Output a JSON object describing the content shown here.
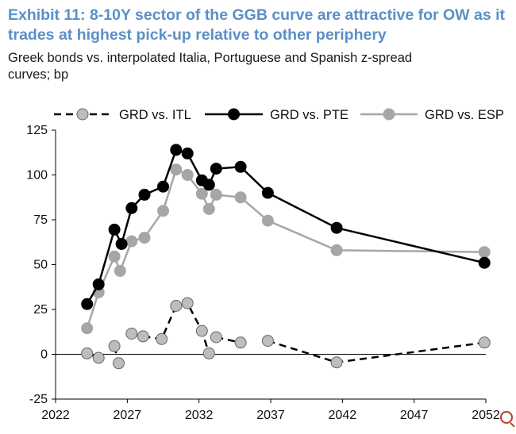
{
  "title_line1": "Exhibit 11: 8-10Y sector of the GGB curve are attractive for OW as it",
  "title_line2": "trades at highest pick-up relative to other periphery",
  "subtitle_line1": "Greek bonds vs. interpolated Italia, Portuguese and Spanish z-spread",
  "subtitle_line2": "curves; bp",
  "chart_data": {
    "type": "line",
    "title": "8-10Y sector of the GGB curve are attractive for OW as it trades at highest pick-up relative to other periphery",
    "xlabel": "",
    "ylabel": "bp",
    "xlim": [
      2022,
      2052
    ],
    "ylim": [
      -25,
      125
    ],
    "xticks": [
      2022,
      2027,
      2032,
      2037,
      2042,
      2047,
      2052
    ],
    "xtick_labels": [
      "2022",
      "2027",
      "2032",
      "2037",
      "2042",
      "2047",
      "2052"
    ],
    "yticks": [
      -25,
      0,
      25,
      50,
      75,
      100,
      125
    ],
    "ytick_labels": [
      "-25",
      "0",
      "25",
      "50",
      "75",
      "100",
      "125"
    ],
    "legend_position": "top",
    "series": [
      {
        "name": "GRD vs. ITL",
        "color": "#000000",
        "marker_fill": "#bdbdbd",
        "line_style": "dashed",
        "segments": [
          [
            [
              2024.2,
              0.5
            ],
            [
              2025.0,
              -2.0
            ]
          ],
          [
            [
              2026.1,
              4.5
            ],
            [
              2026.4,
              -5.0
            ]
          ],
          [
            [
              2027.3,
              11.5
            ],
            [
              2028.1,
              10.0
            ],
            [
              2029.4,
              8.5
            ],
            [
              2030.4,
              27.0
            ],
            [
              2031.2,
              28.5
            ],
            [
              2032.2,
              13.0
            ],
            [
              2032.7,
              0.5
            ]
          ],
          [
            [
              2033.2,
              9.5
            ],
            [
              2034.9,
              6.5
            ]
          ],
          [
            [
              2036.8,
              7.5
            ],
            [
              2041.6,
              -4.5
            ],
            [
              2051.9,
              6.5
            ]
          ]
        ]
      },
      {
        "name": "GRD vs. PTE",
        "color": "#000000",
        "marker_fill": "#000000",
        "line_style": "solid",
        "segments": [
          [
            [
              2024.2,
              28.0
            ],
            [
              2025.0,
              39.0
            ],
            [
              2026.1,
              69.5
            ],
            [
              2026.6,
              61.5
            ],
            [
              2027.3,
              81.5
            ],
            [
              2028.2,
              89.0
            ],
            [
              2029.5,
              93.5
            ],
            [
              2030.4,
              114.0
            ],
            [
              2031.2,
              112.0
            ],
            [
              2032.2,
              97.0
            ],
            [
              2032.7,
              94.5
            ],
            [
              2033.2,
              103.5
            ],
            [
              2034.9,
              104.5
            ],
            [
              2036.8,
              90.0
            ],
            [
              2041.6,
              70.5
            ],
            [
              2051.9,
              51.0
            ]
          ]
        ]
      },
      {
        "name": "GRD vs. ESP",
        "color": "#a6a6a6",
        "marker_fill": "#a6a6a6",
        "line_style": "solid",
        "segments": [
          [
            [
              2024.2,
              14.5
            ],
            [
              2025.0,
              34.5
            ],
            [
              2026.1,
              54.5
            ],
            [
              2026.5,
              46.5
            ],
            [
              2027.3,
              63.0
            ],
            [
              2028.2,
              65.0
            ],
            [
              2029.5,
              80.0
            ],
            [
              2030.4,
              103.0
            ],
            [
              2031.2,
              100.0
            ],
            [
              2032.2,
              89.5
            ],
            [
              2032.7,
              81.0
            ],
            [
              2033.2,
              89.0
            ],
            [
              2034.9,
              87.5
            ],
            [
              2036.8,
              74.5
            ],
            [
              2041.6,
              58.0
            ],
            [
              2051.9,
              57.0
            ]
          ]
        ]
      }
    ]
  }
}
